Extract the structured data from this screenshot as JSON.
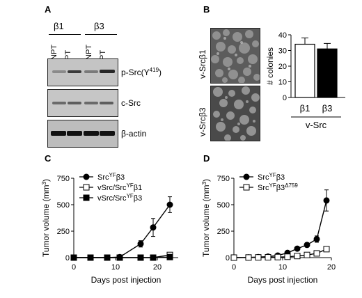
{
  "panels": {
    "A": {
      "letter": "A",
      "groups": [
        "β1",
        "β3"
      ],
      "lanes": [
        "NPT",
        "PT",
        "NPT",
        "PT"
      ],
      "blots": [
        {
          "label": "p-Src(Y419)",
          "label_main": "p-Src(Y",
          "label_sup": "419",
          "label_end": ")",
          "intensity": [
            0.15,
            0.55,
            0.2,
            0.75
          ]
        },
        {
          "label": "c-Src",
          "intensity": [
            0.5,
            0.55,
            0.5,
            0.55
          ]
        },
        {
          "label": "β-actin",
          "intensity": [
            0.95,
            0.95,
            0.95,
            0.95
          ]
        }
      ]
    },
    "B": {
      "letter": "B",
      "images": [
        "v-Srcβ1",
        "v-Srcβ3"
      ]
    },
    "C": {
      "letter": "C"
    },
    "D": {
      "letter": "D"
    }
  },
  "chart_data": [
    {
      "id": "B",
      "type": "bar",
      "categories": [
        "β1",
        "β3"
      ],
      "values": [
        34,
        31
      ],
      "errors": [
        4,
        3.5
      ],
      "fills": [
        "#ffffff",
        "#000000"
      ],
      "ylabel": "# colonies",
      "group_label": "v-Src",
      "ylim": [
        0,
        40
      ],
      "yticks": [
        0,
        10,
        20,
        30,
        40
      ]
    },
    {
      "id": "C",
      "type": "line",
      "xlabel": "Days post injection",
      "ylabel": "Tumor volume (mm3)",
      "xlim": [
        0,
        25
      ],
      "ylim": [
        0,
        750
      ],
      "xticks": [
        0,
        10,
        20
      ],
      "yticks": [
        0,
        250,
        500,
        750
      ],
      "series": [
        {
          "name": "SrcYFβ3",
          "name_main": "Src",
          "name_sup": "YF",
          "name_end": "β3",
          "marker": "circle-filled",
          "x": [
            0,
            4,
            8,
            11,
            16,
            19,
            23
          ],
          "y": [
            0,
            0,
            0,
            5,
            130,
            285,
            500
          ],
          "err": [
            0,
            0,
            0,
            5,
            30,
            85,
            75
          ]
        },
        {
          "name": "vSrc/SrcYFβ1",
          "name_main": "vSrc/Src",
          "name_sup": "YF",
          "name_end": "β1",
          "marker": "square-open",
          "x": [
            0,
            4,
            8,
            11,
            16,
            19,
            23
          ],
          "y": [
            0,
            0,
            0,
            0,
            0,
            0,
            25
          ],
          "err": [
            0,
            0,
            0,
            0,
            0,
            0,
            10
          ]
        },
        {
          "name": "vSrc/SrcYFβ3",
          "name_main": "vSrc/Src",
          "name_sup": "YF",
          "name_end": "β3",
          "marker": "square-filled",
          "x": [
            0,
            4,
            8,
            11,
            16,
            19,
            23
          ],
          "y": [
            0,
            0,
            0,
            0,
            0,
            0,
            5
          ],
          "err": [
            0,
            0,
            0,
            0,
            0,
            0,
            3
          ]
        }
      ]
    },
    {
      "id": "D",
      "type": "line",
      "xlabel": "Days post injection",
      "ylabel": "Tumor volume (mm3)",
      "xlim": [
        0,
        20
      ],
      "ylim": [
        0,
        750
      ],
      "xticks": [
        0,
        10,
        20
      ],
      "yticks": [
        0,
        250,
        500,
        750
      ],
      "series": [
        {
          "name": "SrcYFβ3",
          "name_main": "Src",
          "name_sup": "YF",
          "name_end": "β3",
          "marker": "circle-filled",
          "x": [
            0,
            3,
            5,
            7,
            9,
            11,
            13,
            15,
            17,
            19
          ],
          "y": [
            0,
            2,
            5,
            10,
            20,
            45,
            85,
            120,
            175,
            540
          ],
          "err": [
            0,
            0,
            0,
            0,
            0,
            10,
            15,
            20,
            30,
            100
          ]
        },
        {
          "name": "SrcYFβ3Δ759",
          "name_main": "Src",
          "name_sup": "YF",
          "name_end": "β3",
          "name_sup2": "Δ759",
          "marker": "square-open",
          "x": [
            0,
            3,
            5,
            7,
            9,
            11,
            13,
            15,
            17,
            19
          ],
          "y": [
            0,
            1,
            2,
            3,
            5,
            8,
            15,
            25,
            40,
            80
          ],
          "err": [
            0,
            0,
            0,
            0,
            0,
            0,
            0,
            0,
            5,
            10
          ]
        }
      ]
    }
  ]
}
